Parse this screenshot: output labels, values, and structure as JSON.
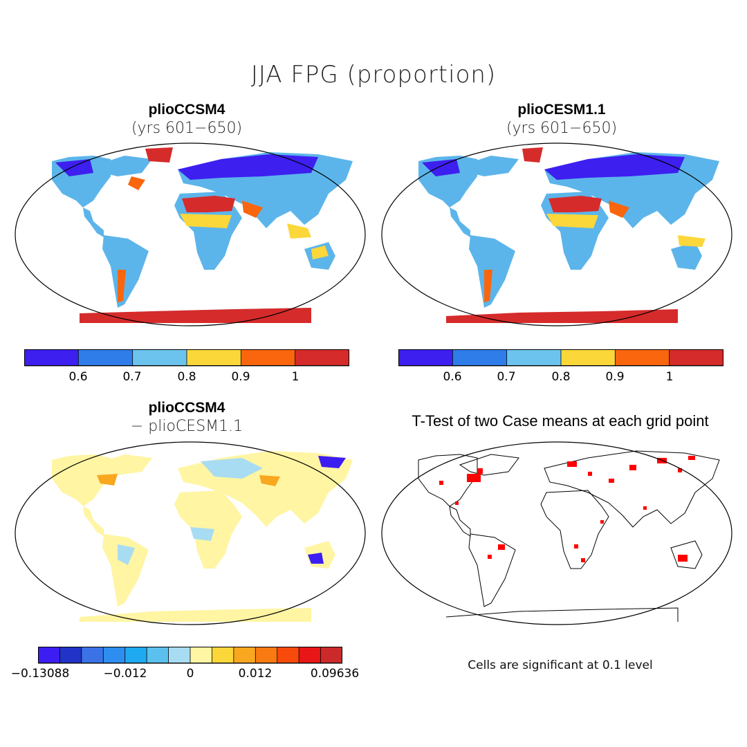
{
  "main_title": "JJA FPG (proportion)",
  "panels": [
    {
      "title": "plioCCSM4",
      "subtitle": "(yrs 601−650)"
    },
    {
      "title": "plioCESM1.1",
      "subtitle": "(yrs 601−650)"
    },
    {
      "title": "plioCCSM4",
      "subtitle": "− plioCESM1.1"
    },
    {
      "title": "T-Test of two Case means at each grid point",
      "subtitle": ""
    }
  ],
  "colorbar_top": {
    "colors": [
      "#3d1ff0",
      "#2e7de8",
      "#6cc4ee",
      "#fbd73a",
      "#f9660e",
      "#d62b2b"
    ],
    "labels": [
      "0.6",
      "0.7",
      "0.8",
      "0.9",
      "1"
    ]
  },
  "colorbar_diff": {
    "colors": [
      "#3c1ef2",
      "#2233c8",
      "#3b73e6",
      "#2d8ef0",
      "#1fa9f0",
      "#5cc0ee",
      "#a8dcf2",
      "#fff5a3",
      "#fbd73a",
      "#f9a71e",
      "#f97a10",
      "#f84a0a",
      "#e81616",
      "#cc2a2a"
    ],
    "labels": [
      "−0.13088",
      "−0.012",
      "0",
      "0.012",
      "0.09636"
    ]
  },
  "footnote": "Cells are significant at 0.1 level"
}
